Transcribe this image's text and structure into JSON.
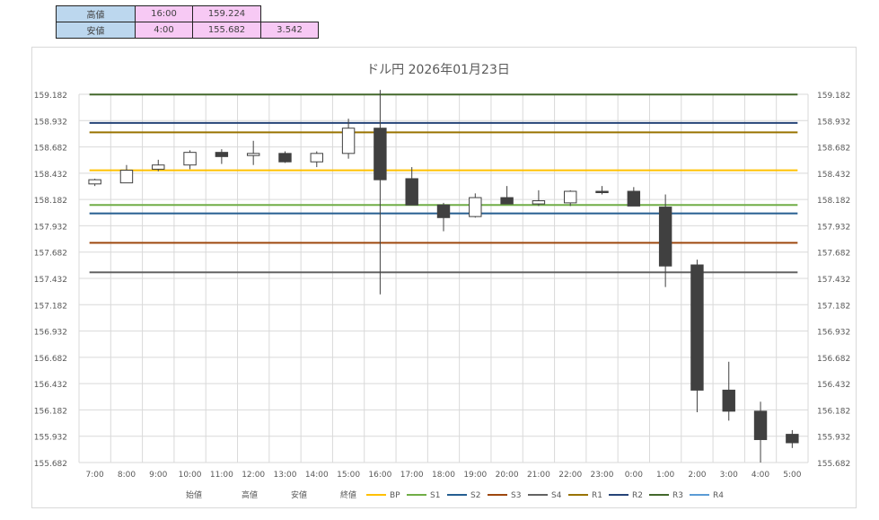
{
  "summary_table": {
    "rows": [
      {
        "label": "高値",
        "time": "16:00",
        "value": "159.224",
        "range": ""
      },
      {
        "label": "安値",
        "time": "4:00",
        "value": "155.682",
        "range": "3.542"
      }
    ]
  },
  "chart_data": {
    "type": "candlestick",
    "title": "ドル円  2026年01月23日",
    "ylim": [
      155.682,
      159.182
    ],
    "yticks": [
      "159.182",
      "158.932",
      "158.682",
      "158.432",
      "158.182",
      "157.932",
      "157.682",
      "157.432",
      "157.182",
      "156.932",
      "156.682",
      "156.432",
      "156.182",
      "155.932",
      "155.682"
    ],
    "categories": [
      "7:00",
      "8:00",
      "9:00",
      "10:00",
      "11:00",
      "12:00",
      "13:00",
      "14:00",
      "15:00",
      "16:00",
      "17:00",
      "18:00",
      "19:00",
      "20:00",
      "21:00",
      "22:00",
      "23:00",
      "0:00",
      "1:00",
      "2:00",
      "3:00",
      "4:00",
      "5:00"
    ],
    "candles": [
      {
        "open": 158.33,
        "high": 158.38,
        "low": 158.31,
        "close": 158.37
      },
      {
        "open": 158.34,
        "high": 158.51,
        "low": 158.34,
        "close": 158.46
      },
      {
        "open": 158.47,
        "high": 158.56,
        "low": 158.45,
        "close": 158.51
      },
      {
        "open": 158.51,
        "high": 158.65,
        "low": 158.47,
        "close": 158.63
      },
      {
        "open": 158.63,
        "high": 158.66,
        "low": 158.52,
        "close": 158.59
      },
      {
        "open": 158.6,
        "high": 158.74,
        "low": 158.51,
        "close": 158.62
      },
      {
        "open": 158.62,
        "high": 158.64,
        "low": 158.53,
        "close": 158.54
      },
      {
        "open": 158.54,
        "high": 158.64,
        "low": 158.49,
        "close": 158.62
      },
      {
        "open": 158.62,
        "high": 158.95,
        "low": 158.57,
        "close": 158.86
      },
      {
        "open": 158.86,
        "high": 159.224,
        "low": 157.28,
        "close": 158.37
      },
      {
        "open": 158.38,
        "high": 158.49,
        "low": 158.14,
        "close": 158.13
      },
      {
        "open": 158.13,
        "high": 158.15,
        "low": 157.88,
        "close": 158.01
      },
      {
        "open": 158.02,
        "high": 158.24,
        "low": 158.01,
        "close": 158.2
      },
      {
        "open": 158.2,
        "high": 158.31,
        "low": 158.14,
        "close": 158.14
      },
      {
        "open": 158.14,
        "high": 158.27,
        "low": 158.12,
        "close": 158.17
      },
      {
        "open": 158.15,
        "high": 158.27,
        "low": 158.12,
        "close": 158.26
      },
      {
        "open": 158.26,
        "high": 158.31,
        "low": 158.23,
        "close": 158.25
      },
      {
        "open": 158.26,
        "high": 158.3,
        "low": 158.12,
        "close": 158.12
      },
      {
        "open": 158.11,
        "high": 158.23,
        "low": 157.35,
        "close": 157.55
      },
      {
        "open": 157.56,
        "high": 157.61,
        "low": 156.16,
        "close": 156.37
      },
      {
        "open": 156.37,
        "high": 156.64,
        "low": 156.08,
        "close": 156.17
      },
      {
        "open": 156.17,
        "high": 156.26,
        "low": 155.682,
        "close": 155.9
      },
      {
        "open": 155.95,
        "high": 155.99,
        "low": 155.82,
        "close": 155.87
      }
    ],
    "levels": [
      {
        "name": "BP",
        "value": 158.46,
        "color": "#ffc000"
      },
      {
        "name": "S1",
        "value": 158.13,
        "color": "#70ad47"
      },
      {
        "name": "S2",
        "value": 158.05,
        "color": "#255e91"
      },
      {
        "name": "S3",
        "value": 157.77,
        "color": "#9e480e"
      },
      {
        "name": "S4",
        "value": 157.49,
        "color": "#636363"
      },
      {
        "name": "R1",
        "value": 158.82,
        "color": "#997300"
      },
      {
        "name": "R2",
        "value": 158.91,
        "color": "#264478"
      },
      {
        "name": "R3",
        "value": 159.18,
        "color": "#43682b"
      },
      {
        "name": "R4",
        "value": null,
        "color": "#5b9bd5"
      }
    ],
    "legend": {
      "position": "bottom",
      "ohlc_labels": [
        "始値",
        "高値",
        "安値",
        "終値"
      ]
    },
    "colors": {
      "up_body": "#ffffff",
      "down_body": "#404040",
      "wick": "#404040",
      "grid": "#d9d9d9"
    },
    "grid": true
  }
}
